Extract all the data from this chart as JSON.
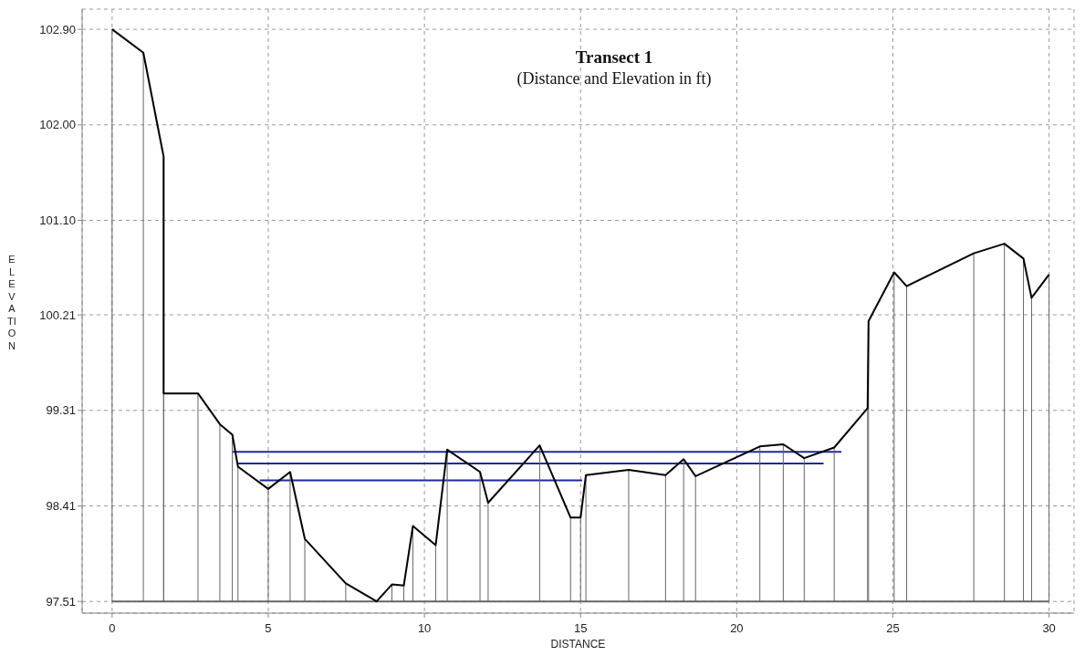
{
  "chart_data": {
    "type": "line",
    "title": "Transect 1",
    "subtitle": "(Distance and Elevation in ft)",
    "xlabel": "DISTANCE",
    "ylabel": "ELEVATION",
    "xlim": [
      -0.96,
      30.8
    ],
    "xticks": [
      0,
      5,
      10,
      15,
      20,
      25,
      30
    ],
    "ylim": [
      97.4,
      103.09
    ],
    "yticks": [
      {
        "value": 97.51,
        "label": "97.51"
      },
      {
        "value": 98.41,
        "label": "98.41"
      },
      {
        "value": 99.31,
        "label": "99.31"
      },
      {
        "value": 100.21,
        "label": "100.21"
      },
      {
        "value": 101.1,
        "label": "101.10"
      },
      {
        "value": 102.0,
        "label": "102.00"
      },
      {
        "value": 102.9,
        "label": "102.90"
      }
    ],
    "grid": true,
    "series": [
      {
        "type": "line",
        "color": "#666666",
        "x": [
          0,
          30
        ],
        "values": [
          97.51,
          97.51
        ]
      },
      {
        "type": "line",
        "color": "#1f2a9a",
        "x": [
          4.73,
          15.05
        ],
        "values": [
          98.65,
          98.65
        ]
      },
      {
        "type": "line",
        "color": "#1f2a9a",
        "x": [
          4.03,
          22.78
        ],
        "values": [
          98.81,
          98.81
        ]
      },
      {
        "type": "line",
        "color": "#1f2a9a",
        "x": [
          3.86,
          23.35
        ],
        "values": [
          98.92,
          98.92
        ]
      },
      {
        "type": "line",
        "color": "#000000",
        "errors": [
          [
            97.51,
            102.9
          ],
          [
            97.51,
            102.68
          ],
          [
            97.51,
            101.7
          ],
          [
            97.51,
            99.47
          ],
          [
            97.51,
            99.47
          ],
          [
            97.51,
            99.18
          ],
          [
            97.51,
            99.08
          ],
          [
            97.51,
            98.78
          ],
          [
            97.51,
            98.57
          ],
          [
            97.51,
            98.73
          ],
          [
            97.51,
            98.1
          ],
          [
            97.51,
            97.68
          ],
          null,
          [
            97.51,
            97.67
          ],
          [
            97.51,
            97.66
          ],
          [
            97.51,
            98.22
          ],
          [
            97.51,
            98.04
          ],
          [
            97.51,
            98.94
          ],
          [
            97.51,
            98.73
          ],
          [
            97.51,
            98.44
          ],
          [
            97.51,
            98.98
          ],
          [
            97.51,
            98.3
          ],
          [
            97.51,
            98.3
          ],
          [
            97.51,
            98.7
          ],
          [
            97.51,
            98.75
          ],
          [
            97.51,
            98.7
          ],
          [
            97.51,
            98.85
          ],
          [
            97.51,
            98.69
          ],
          [
            97.51,
            98.97
          ],
          [
            97.51,
            98.99
          ],
          [
            97.51,
            98.86
          ],
          [
            97.51,
            98.96
          ],
          [
            97.51,
            99.33
          ],
          [
            97.51,
            100.15
          ],
          [
            97.51,
            100.61
          ],
          [
            97.51,
            100.48
          ],
          [
            97.51,
            100.79
          ],
          [
            97.51,
            100.88
          ],
          [
            97.51,
            100.74
          ],
          [
            97.51,
            100.37
          ],
          [
            97.51,
            100.59
          ]
        ],
        "x": [
          0,
          1.0,
          1.65,
          1.65,
          2.75,
          3.45,
          3.85,
          4.03,
          5.0,
          5.7,
          6.17,
          7.48,
          8.47,
          8.96,
          9.34,
          9.63,
          10.36,
          10.73,
          11.78,
          12.04,
          13.69,
          14.68,
          15.0,
          15.17,
          16.54,
          17.72,
          18.3,
          18.68,
          20.74,
          21.49,
          22.16,
          23.12,
          24.19,
          24.22,
          25.04,
          25.44,
          27.59,
          28.57,
          29.18,
          29.44,
          30.0
        ],
        "values": [
          102.9,
          102.68,
          101.7,
          99.47,
          99.47,
          99.18,
          99.08,
          98.78,
          98.57,
          98.73,
          98.1,
          97.68,
          97.51,
          97.67,
          97.66,
          98.22,
          98.04,
          98.94,
          98.73,
          98.44,
          98.98,
          98.3,
          98.3,
          98.7,
          98.75,
          98.7,
          98.85,
          98.69,
          98.97,
          98.99,
          98.86,
          98.96,
          99.33,
          100.15,
          100.61,
          100.48,
          100.79,
          100.88,
          100.74,
          100.37,
          100.59
        ]
      }
    ]
  }
}
